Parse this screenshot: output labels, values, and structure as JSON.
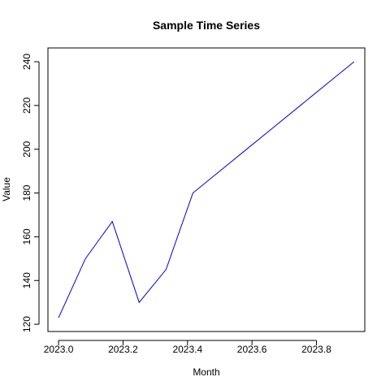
{
  "chart_data": {
    "type": "line",
    "title": "Sample Time Series",
    "xlabel": "Month",
    "ylabel": "Value",
    "x": [
      2023.0,
      2023.0833,
      2023.1667,
      2023.25,
      2023.3333,
      2023.4167,
      2023.5,
      2023.5833,
      2023.6667,
      2023.75,
      2023.8333,
      2023.9167
    ],
    "series": [
      {
        "values": [
          123,
          150,
          167,
          130,
          145,
          180,
          190,
          200,
          210,
          220,
          230,
          240
        ],
        "color": "#0000cd"
      }
    ],
    "xlim": [
      2022.967,
      2023.95
    ],
    "ylim": [
      116.7,
      246.3
    ],
    "xticks": [
      2023.0,
      2023.2,
      2023.4,
      2023.6,
      2023.8
    ],
    "xtick_labels": [
      "2023.0",
      "2023.2",
      "2023.4",
      "2023.6",
      "2023.8"
    ],
    "yticks": [
      120,
      140,
      160,
      180,
      200,
      220,
      240
    ],
    "ytick_labels": [
      "120",
      "140",
      "160",
      "180",
      "200",
      "220",
      "240"
    ],
    "grid": false,
    "legend": "none"
  }
}
